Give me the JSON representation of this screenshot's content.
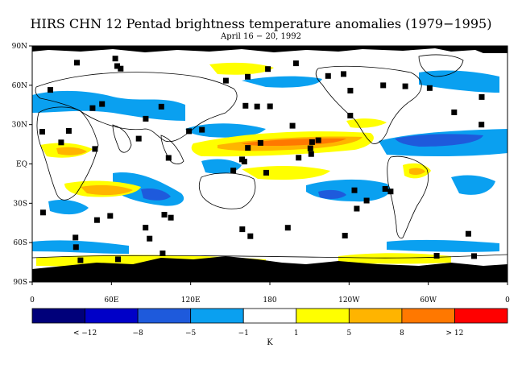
{
  "title": "HIRS CHN 12 Pentad brightness temperature anomalies (1979−1995)",
  "subtitle": "April 16 − 20, 1992",
  "map": {
    "lat_ticks": [
      "90N",
      "60N",
      "30N",
      "EQ",
      "30S",
      "60S",
      "90S"
    ],
    "lon_ticks": [
      "0",
      "60E",
      "120E",
      "180",
      "120W",
      "60W",
      "0"
    ]
  },
  "colorbar": {
    "unit_label": "K",
    "tick_labels": [
      "< −12",
      "−8",
      "−5",
      "−1",
      "1",
      "5",
      "8",
      "> 12"
    ],
    "colors": [
      "#00007a",
      "#0000c8",
      "#1e5adc",
      "#0aa0f0",
      "#ffffff",
      "#ffff00",
      "#ffb400",
      "#ff7800",
      "#ff0000"
    ]
  },
  "legend_colors": {
    "missing": "#000000",
    "coast": "#000000"
  }
}
